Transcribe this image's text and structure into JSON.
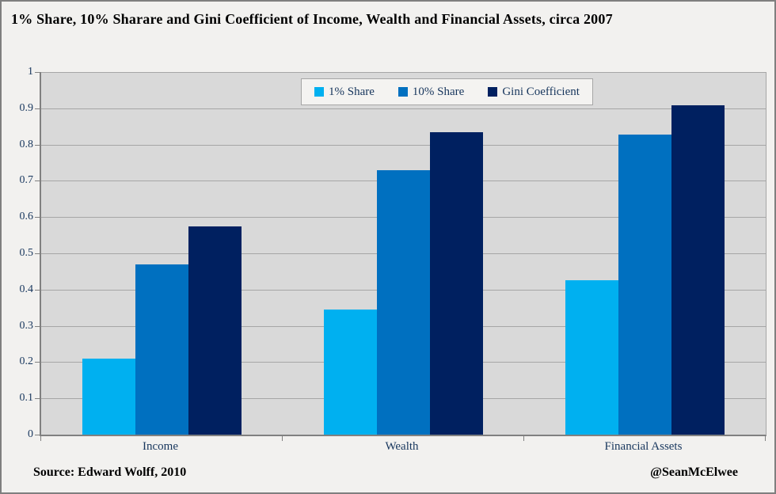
{
  "chart_data": {
    "type": "bar",
    "title": "1% Share, 10% Sharare and Gini Coefficient of Income, Wealth and Financial Assets, circa 2007",
    "categories": [
      "Income",
      "Wealth",
      "Financial Assets"
    ],
    "series": [
      {
        "name": "1% Share",
        "color": "#00B0F0",
        "values": [
          0.21,
          0.346,
          0.425
        ]
      },
      {
        "name": "10% Share",
        "color": "#0070C0",
        "values": [
          0.47,
          0.73,
          0.827
        ]
      },
      {
        "name": "Gini Coefficient",
        "color": "#002060",
        "values": [
          0.574,
          0.834,
          0.908
        ]
      }
    ],
    "xlabel": "",
    "ylabel": "",
    "ylim": [
      0,
      1
    ],
    "ytick_step": 0.1,
    "ytick_labels": [
      "0",
      "0.1",
      "0.2",
      "0.3",
      "0.4",
      "0.5",
      "0.6",
      "0.7",
      "0.8",
      "0.9",
      "1"
    ],
    "grid": true,
    "legend_position": "top-center"
  },
  "footer": {
    "source": "Source: Edward Wolff, 2010",
    "handle": "@SeanMcElwee"
  },
  "colors": {
    "plot_background": "#D9D9D9",
    "page_background": "#F2F1EF",
    "gridline": "#A6A6A6",
    "axis": "#808080",
    "axis_text": "#17365D"
  }
}
